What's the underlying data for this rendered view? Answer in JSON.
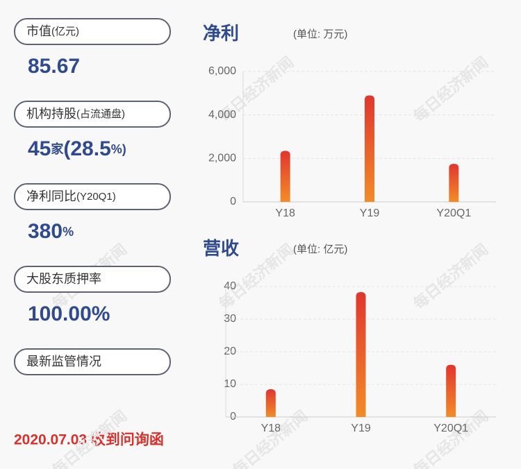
{
  "stats": [
    {
      "label": "市值",
      "note": "(亿元)",
      "value_parts": [
        "85.67"
      ]
    },
    {
      "label": "机构持股",
      "note": "(占流通盘)",
      "value_parts": [
        "45",
        "家",
        "(28.5",
        "%)"
      ]
    },
    {
      "label": "净利同比",
      "note": "(Y20Q1)",
      "value_parts": [
        "380",
        "%"
      ]
    },
    {
      "label": "大股东质押率",
      "value_parts": [
        "100.00%"
      ]
    },
    {
      "label": "最新监管情况"
    }
  ],
  "footer": "2020.07.03 收到问询函",
  "watermark": "每日经济新闻",
  "chart_data": [
    {
      "type": "bar",
      "title": "净利",
      "subtitle": "(单位: 万元)",
      "categories": [
        "Y18",
        "Y19",
        "Y20Q1"
      ],
      "values": [
        2350,
        4900,
        1750
      ],
      "color": [
        "#e0362f",
        "#f28c28"
      ],
      "grid": true,
      "ylim": [
        0,
        6000
      ],
      "yticks": [
        0,
        {
          "value": 2000,
          "label": "2,000"
        },
        {
          "value": 4000,
          "label": "4,000"
        },
        {
          "value": 6000,
          "label": "6,000"
        }
      ]
    },
    {
      "type": "bar",
      "title": "营收",
      "subtitle": "(单位: 亿元)",
      "categories": [
        "Y18",
        "Y19",
        "Y20Q1"
      ],
      "values": [
        8.5,
        38.3,
        16
      ],
      "color": [
        "#e0362f",
        "#f28c28"
      ],
      "grid": true,
      "ylim": [
        0,
        40
      ],
      "yticks": [
        0,
        10,
        20,
        30,
        40
      ]
    }
  ]
}
